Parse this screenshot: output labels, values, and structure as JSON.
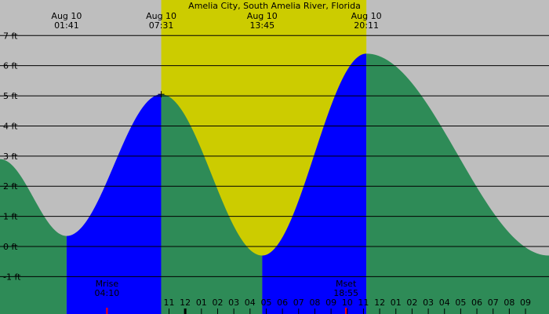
{
  "chart_data": {
    "type": "area",
    "title": "Amelia City, South Amelia River, Florida",
    "xlabel": "",
    "ylabel": "",
    "xlim": [
      -2.43,
      31.45
    ],
    "ylim": [
      -2.24,
      8.18
    ],
    "yticks": [
      7,
      6,
      5,
      4,
      3,
      2,
      1,
      0,
      -1
    ],
    "ytick_labels": [
      "7 ft",
      "6 ft",
      "5 ft",
      "4 ft",
      "3 ft",
      "2 ft",
      "1 ft",
      "0 ft",
      "-1 ft"
    ],
    "hour_ticks": [
      -1,
      0,
      1,
      2,
      3,
      4,
      5,
      6,
      7,
      8,
      9,
      10,
      11,
      12,
      13,
      14,
      15,
      16,
      17,
      18,
      19,
      20,
      21
    ],
    "hour_tick_labels": [
      "11",
      "12",
      "01",
      "02",
      "03",
      "04",
      "05",
      "06",
      "07",
      "08",
      "09",
      "10",
      "11",
      "12",
      "01",
      "02",
      "03",
      "04",
      "05",
      "06",
      "07",
      "08",
      "09"
    ],
    "hour_tick_offset": 9,
    "daylight": [
      7.52,
      20.18
    ],
    "extremes": [
      {
        "date": "Aug 10",
        "time": "01:41",
        "x": 1.68,
        "height": 0.35,
        "kind": "low"
      },
      {
        "date": "Aug 10",
        "time": "07:31",
        "x": 7.52,
        "height": 5.05,
        "kind": "high"
      },
      {
        "date": "Aug 10",
        "time": "13:45",
        "x": 13.75,
        "height": -0.3,
        "kind": "low"
      },
      {
        "date": "Aug 10",
        "time": "20:11",
        "x": 20.18,
        "height": 6.4,
        "kind": "high"
      }
    ],
    "curve": {
      "x": [
        -2.43,
        1.68,
        7.52,
        13.75,
        20.18,
        31.45
      ],
      "y": [
        2.9,
        0.35,
        5.05,
        -0.3,
        6.4,
        -0.3
      ]
    },
    "series": [
      {
        "name": "",
        "color": "#2e8b57",
        "kind": "falling"
      },
      {
        "name": "",
        "color": "#0000ff",
        "kind": "rising"
      }
    ],
    "moon_events": [
      {
        "label": "Mrise",
        "time": "04:10",
        "x": 4.17
      },
      {
        "label": "Mset",
        "time": "18:55",
        "x": 18.92
      }
    ],
    "grid": true,
    "colors": {
      "night": "#bebebe",
      "day": "#cccc00",
      "falling": "#2e8b57",
      "rising": "#0000ff",
      "moon_tick": "#ff0000"
    }
  }
}
